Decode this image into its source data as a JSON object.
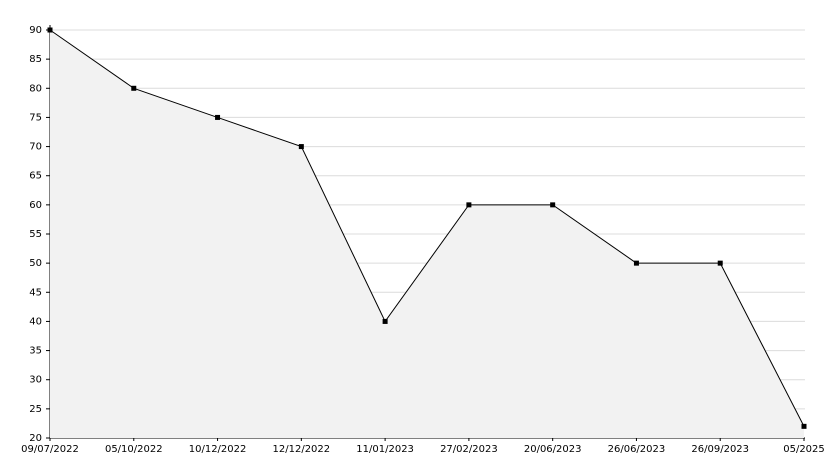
{
  "chart_data": {
    "type": "area",
    "categories": [
      "09/07/2022",
      "05/10/2022",
      "10/12/2022",
      "12/12/2022",
      "11/01/2023",
      "27/02/2023",
      "20/06/2023",
      "26/06/2023",
      "26/09/2023",
      "05/2025"
    ],
    "values": [
      90,
      80,
      75,
      70,
      40,
      60,
      60,
      50,
      50,
      22
    ],
    "color": "#000000",
    "fill": "#f2f2f2",
    "ylim": [
      20,
      90
    ],
    "yticks": [
      20,
      25,
      30,
      35,
      40,
      45,
      50,
      55,
      60,
      65,
      70,
      75,
      80,
      85,
      90
    ],
    "grid": true
  }
}
